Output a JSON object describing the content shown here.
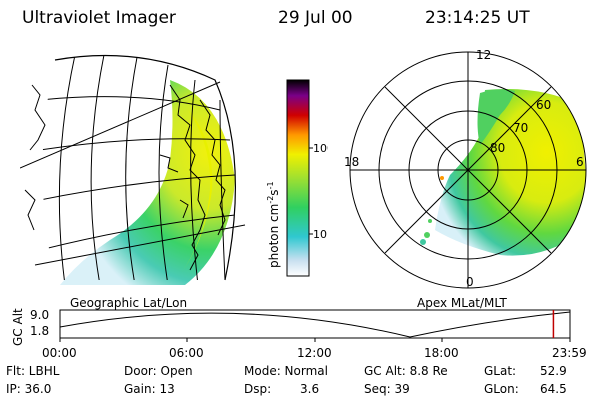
{
  "header": {
    "title": "Ultraviolet Imager",
    "date": "29 Jul 00",
    "time": "23:14:25 UT"
  },
  "colors": {
    "lowest": "#ffffff",
    "cyan": "#30c8d0",
    "green": "#30d060",
    "yellow": "#f0f000",
    "orange": "#ff9800",
    "red": "#d00000",
    "purple": "#7a0088",
    "black": "#000000",
    "timeline_marker": "#c00000"
  },
  "colorbar": {
    "label_units": "photon cm",
    "label_sup1": "-2",
    "label_s": "s",
    "label_sup2": "-1",
    "tick_100": "100",
    "tick_10": "10",
    "scale": "log"
  },
  "left_panel": {
    "caption": "Geographic Lat/Lon"
  },
  "right_panel": {
    "caption": "Apex MLat/MLT",
    "mlt_labels": {
      "top": "12",
      "bottom": "0",
      "left": "18",
      "right": "6"
    },
    "lat_labels": [
      "60",
      "70",
      "80"
    ]
  },
  "timeline": {
    "axis_label": "GC Alt",
    "y_top": "9.0",
    "y_bottom": "1.8",
    "x_ticks": [
      "00:00",
      "06:00",
      "12:00",
      "18:00",
      "23:59"
    ],
    "current_time_fraction": 0.9675
  },
  "status": {
    "flt": "Flt: LBHL",
    "ip": "IP: 36.0",
    "door": "Door: Open",
    "gain": "Gain: 13",
    "mode": "Mode: Normal",
    "dsp": "Dsp:",
    "dsp_value": "3.6",
    "gc_alt": "GC Alt: 8.8 Re",
    "seq": "Seq: 39",
    "glat": "GLat:",
    "glat_value": "52.9",
    "glon": "GLon:",
    "glon_value": "64.5"
  }
}
